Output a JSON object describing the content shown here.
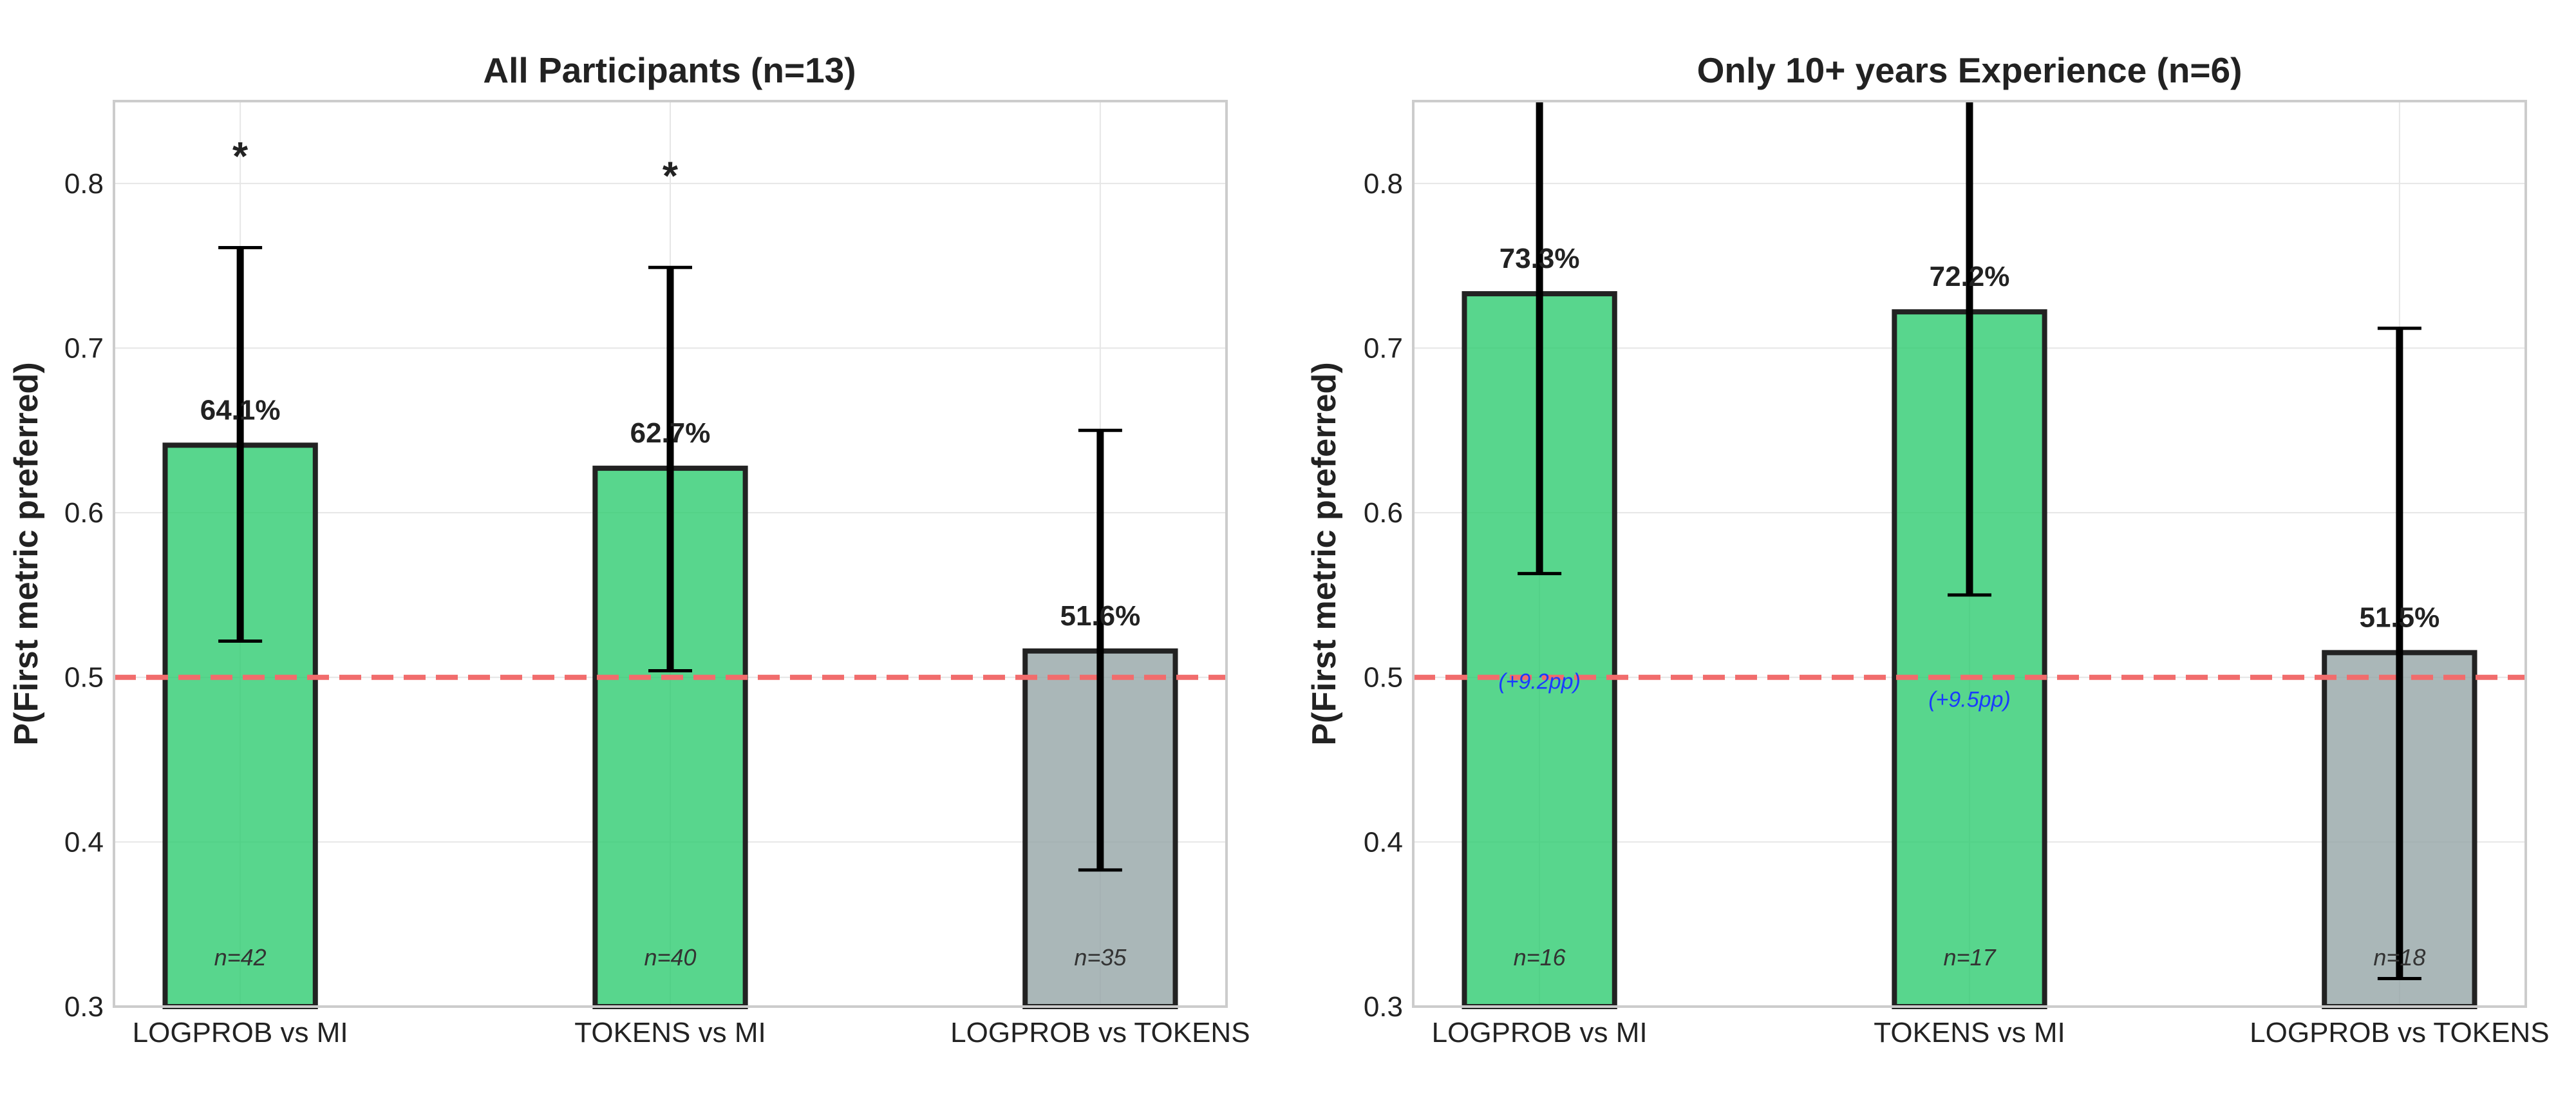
{
  "chart_data": [
    {
      "type": "bar",
      "title": "All Participants (n=13)",
      "ylabel": "P(First metric preferred)",
      "xlabel": "",
      "ylim": [
        0.3,
        0.85
      ],
      "yticks": [
        "0.3",
        "0.4",
        "0.5",
        "0.6",
        "0.7",
        "0.8"
      ],
      "grid": true,
      "reference_line": 0.5,
      "categories": [
        "LOGPROB vs MI",
        "TOKENS vs MI",
        "LOGPROB vs TOKENS"
      ],
      "values": [
        0.641,
        0.627,
        0.516
      ],
      "value_labels": [
        "64.1%",
        "62.7%",
        "51.6%"
      ],
      "error_low": [
        0.522,
        0.504,
        0.383
      ],
      "error_high": [
        0.761,
        0.749,
        0.65
      ],
      "n_labels": [
        "n=42",
        "n=40",
        "n=35"
      ],
      "significance": [
        "*",
        "*",
        ""
      ],
      "deltas": [
        "",
        "",
        ""
      ],
      "bar_colors": [
        "#2ecc71",
        "#2ecc71",
        "#95a5a6"
      ]
    },
    {
      "type": "bar",
      "title": "Only 10+ years Experience (n=6)",
      "ylabel": "P(First metric preferred)",
      "xlabel": "",
      "ylim": [
        0.3,
        0.85
      ],
      "yticks": [
        "0.3",
        "0.4",
        "0.5",
        "0.6",
        "0.7",
        "0.8"
      ],
      "grid": true,
      "reference_line": 0.5,
      "categories": [
        "LOGPROB vs MI",
        "TOKENS vs MI",
        "LOGPROB vs TOKENS"
      ],
      "values": [
        0.733,
        0.722,
        0.515
      ],
      "value_labels": [
        "73.3%",
        "72.2%",
        "51.5%"
      ],
      "error_low": [
        0.563,
        0.55,
        0.317
      ],
      "error_high": [
        0.85,
        0.85,
        0.712
      ],
      "n_labels": [
        "n=16",
        "n=17",
        "n=18"
      ],
      "significance": [
        "",
        "",
        ""
      ],
      "deltas": [
        "(+9.2pp)",
        "(+9.5pp)",
        ""
      ],
      "bar_colors": [
        "#2ecc71",
        "#2ecc71",
        "#95a5a6"
      ]
    }
  ],
  "colors": {
    "reference_line": "#f16c6c",
    "bar_edge": "#222222",
    "error_bar": "#000000",
    "grid": "#e6e6e6",
    "frame": "#cccccc",
    "delta_text": "#1a3cff"
  }
}
